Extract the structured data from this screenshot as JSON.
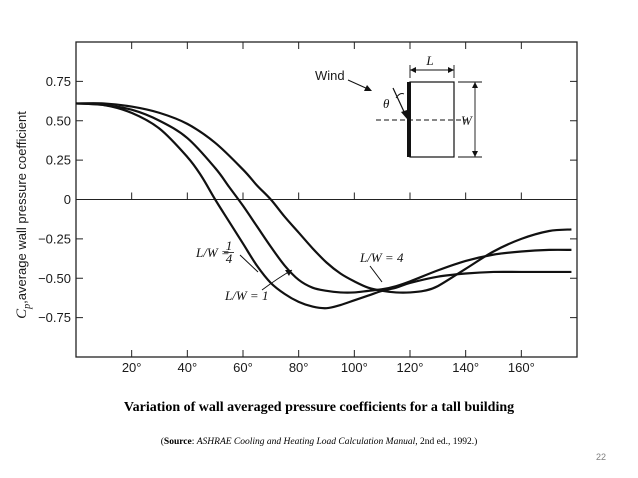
{
  "chart_data": {
    "type": "line",
    "title": "",
    "xlabel": "",
    "ylabel": "C_p, average wall pressure coefficient",
    "ylabel_symbol": "C",
    "ylabel_subscript": "p",
    "ylabel_text": ",average wall pressure coefficient",
    "xlim": [
      0,
      180
    ],
    "ylim": [
      -1.0,
      1.0
    ],
    "x_ticks": [
      20,
      40,
      60,
      80,
      100,
      120,
      140,
      160
    ],
    "x_tick_labels": [
      "20°",
      "40°",
      "60°",
      "80°",
      "100°",
      "120°",
      "140°",
      "160°"
    ],
    "y_ticks": [
      0.75,
      0.5,
      0.25,
      0,
      -0.25,
      -0.5,
      -0.75
    ],
    "y_tick_labels": [
      "0.75",
      "0.50",
      "0.25",
      "0",
      "−0.25",
      "−0.50",
      "−0.75"
    ],
    "grid": false,
    "zero_line": true,
    "series": [
      {
        "name": "L/W = 1/4",
        "x": [
          0,
          10,
          20,
          30,
          40,
          45,
          50,
          55,
          60,
          65,
          70,
          75,
          80,
          85,
          90,
          95,
          100,
          105,
          110,
          115,
          120,
          130,
          140,
          150,
          160,
          170,
          178
        ],
        "y": [
          0.61,
          0.6,
          0.55,
          0.45,
          0.27,
          0.15,
          0.0,
          -0.14,
          -0.28,
          -0.42,
          -0.53,
          -0.6,
          -0.65,
          -0.68,
          -0.69,
          -0.67,
          -0.64,
          -0.61,
          -0.58,
          -0.56,
          -0.53,
          -0.49,
          -0.47,
          -0.46,
          -0.46,
          -0.46,
          -0.46
        ]
      },
      {
        "name": "L/W = 1",
        "x": [
          0,
          10,
          20,
          30,
          40,
          50,
          55,
          60,
          65,
          70,
          75,
          80,
          85,
          90,
          95,
          100,
          105,
          110,
          115,
          120,
          130,
          140,
          150,
          160,
          170,
          178
        ],
        "y": [
          0.61,
          0.6,
          0.57,
          0.5,
          0.39,
          0.2,
          0.08,
          -0.04,
          -0.17,
          -0.3,
          -0.42,
          -0.51,
          -0.56,
          -0.58,
          -0.59,
          -0.59,
          -0.58,
          -0.57,
          -0.55,
          -0.52,
          -0.45,
          -0.39,
          -0.35,
          -0.33,
          -0.32,
          -0.32
        ]
      },
      {
        "name": "L/W = 4",
        "x": [
          0,
          10,
          20,
          30,
          40,
          50,
          60,
          65,
          70,
          75,
          80,
          85,
          90,
          95,
          100,
          105,
          110,
          115,
          120,
          125,
          130,
          140,
          150,
          160,
          170,
          178
        ],
        "y": [
          0.61,
          0.61,
          0.59,
          0.55,
          0.48,
          0.36,
          0.19,
          0.09,
          0.0,
          -0.11,
          -0.21,
          -0.31,
          -0.4,
          -0.47,
          -0.52,
          -0.56,
          -0.58,
          -0.59,
          -0.59,
          -0.58,
          -0.55,
          -0.44,
          -0.33,
          -0.25,
          -0.2,
          -0.19
        ]
      }
    ],
    "curve_labels": [
      {
        "series": "L/W = 1/4",
        "prefix": "L/W = ",
        "numerator": "1",
        "denominator": "4"
      },
      {
        "series": "L/W = 1",
        "text": "L/W = 1"
      },
      {
        "series": "L/W = 4",
        "text": "L/W = 4"
      }
    ],
    "inset": {
      "wind_label": "Wind",
      "theta_label": "θ",
      "L_label": "L",
      "W_label": "W"
    }
  },
  "captions": {
    "title": "Variation of wall averaged pressure coefficients for a tall building",
    "source_prefix": "(",
    "source_bold": "Source",
    "source_sep": ":  ",
    "source_italic": "ASHRAE Cooling and Heating Load Calculation Manual",
    "source_rest": ", 2nd ed., 1992.)"
  },
  "page_number": "22",
  "colors": {
    "line": "#111111",
    "axis": "#222222",
    "page_number": "#7f7f7f"
  }
}
